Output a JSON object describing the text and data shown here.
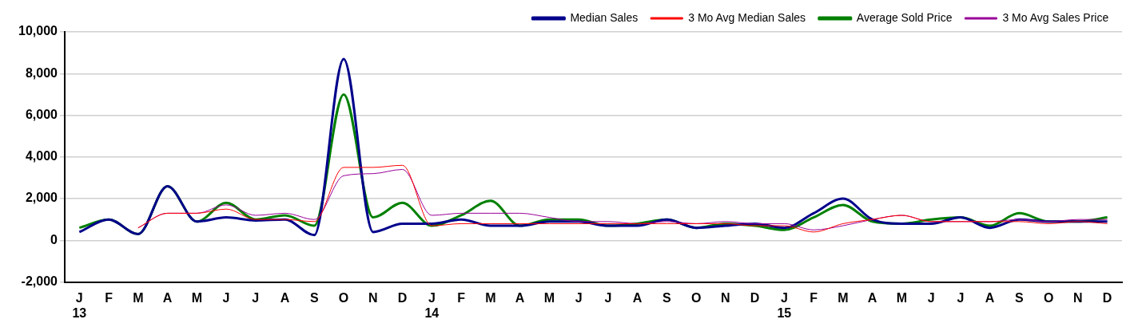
{
  "chart_data": {
    "type": "line",
    "categories": [
      "J\n13",
      "F",
      "M",
      "A",
      "M",
      "J",
      "J",
      "A",
      "S",
      "O",
      "N",
      "D",
      "J\n14",
      "F",
      "M",
      "A",
      "M",
      "J",
      "J",
      "A",
      "S",
      "O",
      "N",
      "D",
      "J\n15",
      "F",
      "M",
      "A",
      "M",
      "J",
      "J",
      "A",
      "S",
      "O",
      "N",
      "D"
    ],
    "series": [
      {
        "name": "Median Sales",
        "color": "#00008b",
        "values": [
          400,
          1000,
          300,
          2600,
          900,
          1100,
          950,
          1000,
          250,
          8700,
          400,
          800,
          800,
          1000,
          700,
          700,
          900,
          900,
          700,
          700,
          1000,
          600,
          700,
          800,
          600,
          1300,
          2000,
          1000,
          800,
          800,
          1100,
          600,
          1000,
          900,
          900,
          900
        ]
      },
      {
        "name": "3 Mo Avg Median Sales",
        "color": "#ff0000",
        "values": [
          null,
          null,
          600,
          1300,
          1300,
          1500,
          1000,
          1000,
          900,
          3500,
          3500,
          3600,
          700,
          800,
          800,
          800,
          800,
          800,
          800,
          800,
          800,
          800,
          800,
          700,
          700,
          400,
          800,
          1000,
          1200,
          900,
          900,
          900,
          900,
          800,
          900,
          800
        ]
      },
      {
        "name": "Average Sold Price",
        "color": "#008000",
        "values": [
          600,
          1000,
          300,
          2600,
          900,
          1800,
          1000,
          1200,
          700,
          7000,
          1100,
          1800,
          700,
          1200,
          1900,
          700,
          1000,
          1000,
          700,
          800,
          1000,
          600,
          800,
          700,
          500,
          1100,
          1700,
          900,
          800,
          1000,
          1100,
          700,
          1300,
          900,
          900,
          1100
        ]
      },
      {
        "name": "3 Mo Avg Sales Price",
        "color": "#990099",
        "values": [
          null,
          null,
          600,
          1300,
          1300,
          1700,
          1200,
          1300,
          1000,
          3100,
          3200,
          3400,
          1200,
          1300,
          1300,
          1300,
          1100,
          900,
          900,
          800,
          900,
          800,
          900,
          800,
          800,
          500,
          700,
          1000,
          1200,
          900,
          900,
          900,
          1000,
          900,
          1000,
          1000
        ]
      }
    ],
    "ylim": [
      -2000,
      10000
    ],
    "yticks": [
      {
        "value": -2000,
        "label": "-2,000"
      },
      0,
      {
        "value": 2000,
        "label": "2,000"
      },
      {
        "value": 4000,
        "label": "4,000"
      },
      {
        "value": 6000,
        "label": "6,000"
      },
      {
        "value": 8000,
        "label": "8,000"
      },
      {
        "value": 10000,
        "label": "10,000"
      }
    ],
    "grid": "y",
    "legend": "top right"
  }
}
